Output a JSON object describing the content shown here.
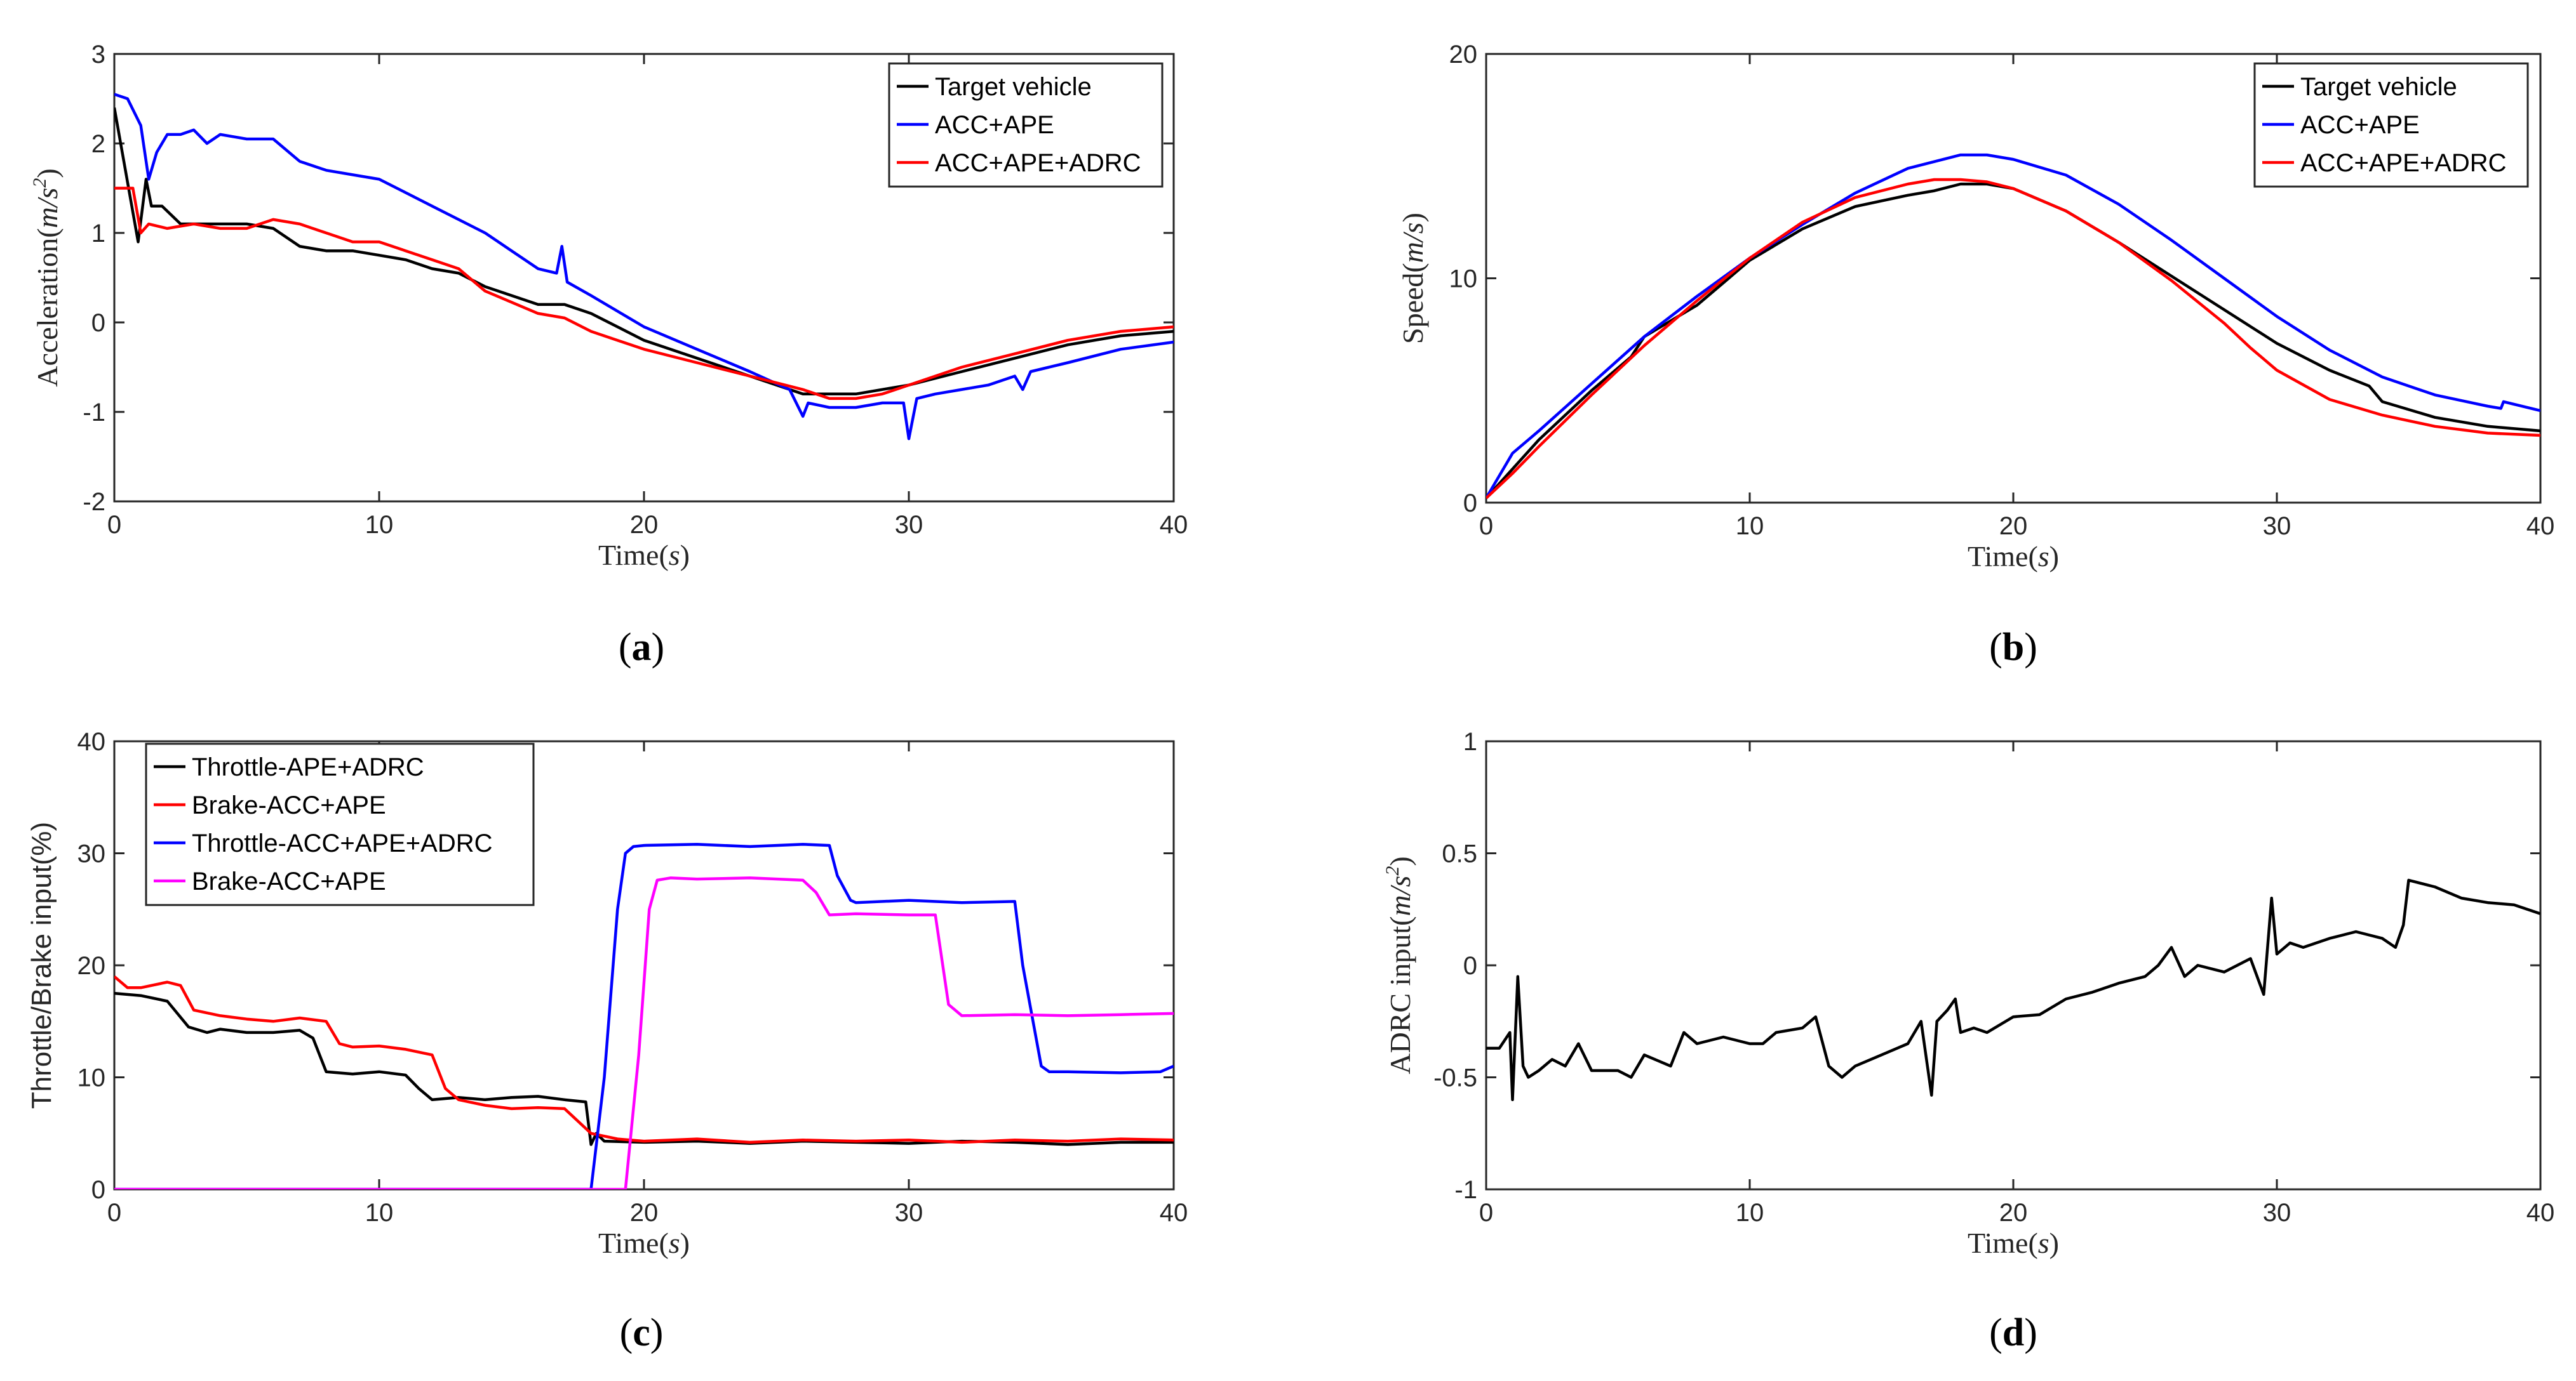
{
  "chart_data": [
    {
      "id": "a",
      "type": "line",
      "caption": "a",
      "xlabel_prefix": "Time",
      "xlabel_var": "s",
      "ylabel_prefix": "Acceleration",
      "ylabel_var": "m/s",
      "ylabel_sup": "2",
      "xlim": [
        0,
        40
      ],
      "ylim": [
        -2,
        3
      ],
      "xticks": [
        "0",
        "10",
        "20",
        "30",
        "40"
      ],
      "yticks": [
        "-2",
        "-1",
        "0",
        "1",
        "2",
        "3"
      ],
      "grid": false,
      "legend_position": "top-right",
      "series": [
        {
          "name": "Target vehicle",
          "color": "#000000",
          "x": [
            0,
            0.3,
            0.6,
            0.9,
            1.2,
            1.4,
            1.8,
            2.5,
            3.5,
            5,
            6,
            7,
            8,
            9,
            10,
            11,
            12,
            13,
            14,
            16,
            17,
            18,
            19,
            20,
            22,
            24,
            26,
            28,
            30,
            32,
            34,
            36,
            38,
            40
          ],
          "y": [
            2.4,
            1.9,
            1.4,
            0.9,
            1.6,
            1.3,
            1.3,
            1.1,
            1.1,
            1.1,
            1.05,
            0.85,
            0.8,
            0.8,
            0.75,
            0.7,
            0.6,
            0.55,
            0.4,
            0.2,
            0.2,
            0.1,
            -0.05,
            -0.2,
            -0.4,
            -0.6,
            -0.8,
            -0.8,
            -0.7,
            -0.55,
            -0.4,
            -0.25,
            -0.15,
            -0.1
          ]
        },
        {
          "name": "ACC+APE",
          "color": "#0000ff",
          "x": [
            0,
            0.5,
            1.0,
            1.3,
            1.6,
            2.0,
            2.5,
            3,
            3.5,
            4,
            5,
            6,
            7,
            8,
            9,
            10,
            11,
            12,
            13,
            14,
            15,
            16,
            16.7,
            16.9,
            17.1,
            18,
            20,
            22,
            24,
            25.5,
            26,
            26.2,
            27,
            28,
            29,
            29.8,
            30,
            30.3,
            31,
            33,
            34,
            34.3,
            34.6,
            36,
            38,
            40
          ],
          "y": [
            2.55,
            2.5,
            2.2,
            1.6,
            1.9,
            2.1,
            2.1,
            2.15,
            2.0,
            2.1,
            2.05,
            2.05,
            1.8,
            1.7,
            1.65,
            1.6,
            1.45,
            1.3,
            1.15,
            1.0,
            0.8,
            0.6,
            0.55,
            0.85,
            0.45,
            0.3,
            -0.05,
            -0.3,
            -0.55,
            -0.75,
            -1.05,
            -0.9,
            -0.95,
            -0.95,
            -0.9,
            -0.9,
            -1.3,
            -0.85,
            -0.8,
            -0.7,
            -0.6,
            -0.75,
            -0.55,
            -0.45,
            -0.3,
            -0.22
          ]
        },
        {
          "name": "ACC+APE+ADRC",
          "color": "#ff0000",
          "x": [
            0,
            0.7,
            1.0,
            1.3,
            2,
            3,
            4,
            5,
            6,
            7,
            8,
            9,
            10,
            11,
            12,
            13,
            14,
            16,
            17,
            18,
            19,
            20,
            22,
            24,
            26,
            27,
            28,
            29,
            30,
            32,
            34,
            36,
            38,
            40
          ],
          "y": [
            1.5,
            1.5,
            1.0,
            1.1,
            1.05,
            1.1,
            1.05,
            1.05,
            1.15,
            1.1,
            1.0,
            0.9,
            0.9,
            0.8,
            0.7,
            0.6,
            0.35,
            0.1,
            0.05,
            -0.1,
            -0.2,
            -0.3,
            -0.45,
            -0.6,
            -0.75,
            -0.85,
            -0.85,
            -0.8,
            -0.7,
            -0.5,
            -0.35,
            -0.2,
            -0.1,
            -0.05
          ]
        }
      ]
    },
    {
      "id": "b",
      "type": "line",
      "caption": "b",
      "xlabel_prefix": "Time",
      "xlabel_var": "s",
      "ylabel_prefix": "Speed",
      "ylabel_var": "m/s",
      "xlim": [
        0,
        40
      ],
      "ylim": [
        0,
        20
      ],
      "xticks": [
        "0",
        "10",
        "20",
        "30",
        "40"
      ],
      "yticks": [
        "0",
        "10",
        "20"
      ],
      "grid": false,
      "legend_position": "top-right",
      "series": [
        {
          "name": "Target vehicle",
          "color": "#000000",
          "x": [
            0,
            1,
            2,
            4,
            5.5,
            6,
            8,
            9,
            10,
            12,
            14,
            16,
            17,
            18,
            19,
            20,
            22,
            24,
            26,
            28,
            30,
            32,
            33.5,
            34,
            36,
            38,
            40
          ],
          "y": [
            0.2,
            1.5,
            2.8,
            5.0,
            6.5,
            7.4,
            8.8,
            9.8,
            10.8,
            12.2,
            13.2,
            13.7,
            13.9,
            14.2,
            14.2,
            14.0,
            13.0,
            11.6,
            10.1,
            8.6,
            7.1,
            5.9,
            5.2,
            4.5,
            3.8,
            3.4,
            3.2
          ]
        },
        {
          "name": "ACC+APE",
          "color": "#0000ff",
          "x": [
            0,
            0.3,
            0.8,
            1,
            2,
            4,
            6,
            8,
            10,
            12,
            14,
            16,
            18,
            19,
            20,
            22,
            24,
            26,
            28,
            30,
            32,
            34,
            36,
            38,
            38.5,
            38.6,
            40
          ],
          "y": [
            0.2,
            0.8,
            1.8,
            2.2,
            3.2,
            5.3,
            7.4,
            9.2,
            10.9,
            12.4,
            13.8,
            14.9,
            15.5,
            15.5,
            15.3,
            14.6,
            13.3,
            11.7,
            10.0,
            8.3,
            6.8,
            5.6,
            4.8,
            4.3,
            4.2,
            4.5,
            4.1
          ]
        },
        {
          "name": "ACC+APE+ADRC",
          "color": "#ff0000",
          "x": [
            0,
            1,
            2,
            4,
            6,
            8,
            10,
            12,
            14,
            16,
            17,
            18,
            19,
            20,
            22,
            24,
            26,
            28,
            29,
            30,
            32,
            34,
            36,
            38,
            40
          ],
          "y": [
            0.2,
            1.3,
            2.5,
            4.8,
            7.0,
            9.0,
            10.9,
            12.5,
            13.6,
            14.2,
            14.4,
            14.4,
            14.3,
            14.0,
            13.0,
            11.6,
            9.9,
            8.0,
            6.9,
            5.9,
            4.6,
            3.9,
            3.4,
            3.1,
            3.0
          ]
        }
      ]
    },
    {
      "id": "c",
      "type": "line",
      "caption": "c",
      "xlabel_prefix": "Time",
      "xlabel_var": "s",
      "ylabel_plain": "Throttle/Brake input(%)",
      "xlim": [
        0,
        40
      ],
      "ylim": [
        0,
        40
      ],
      "xticks": [
        "0",
        "10",
        "20",
        "30",
        "40"
      ],
      "yticks": [
        "0",
        "10",
        "20",
        "30",
        "40"
      ],
      "grid": false,
      "legend_position": "top-left",
      "series": [
        {
          "name": "Throttle-APE+ADRC",
          "color": "#000000",
          "x": [
            0,
            1,
            2,
            2.8,
            3.5,
            4,
            5,
            6,
            7,
            7.5,
            8,
            9,
            10,
            11,
            11.5,
            12,
            13,
            14,
            15,
            16,
            17,
            17.8,
            18.0,
            18.2,
            18.5,
            20,
            22,
            24,
            26,
            28,
            30,
            32,
            34,
            36,
            38,
            40
          ],
          "y": [
            17.5,
            17.3,
            16.8,
            14.5,
            14.0,
            14.3,
            14.0,
            14.0,
            14.2,
            13.5,
            10.5,
            10.3,
            10.5,
            10.2,
            9.0,
            8.0,
            8.2,
            8.0,
            8.2,
            8.3,
            8.0,
            7.8,
            4.0,
            5.0,
            4.3,
            4.2,
            4.3,
            4.1,
            4.3,
            4.2,
            4.1,
            4.3,
            4.2,
            4.0,
            4.2,
            4.2
          ]
        },
        {
          "name": "Brake-ACC+APE",
          "color": "#ff0000",
          "x": [
            0,
            0.5,
            1,
            2,
            2.5,
            3,
            4,
            5,
            6,
            7,
            8,
            8.5,
            9,
            10,
            11,
            12,
            12.5,
            13,
            14,
            15,
            16,
            17,
            18,
            19,
            20,
            22,
            24,
            26,
            28,
            30,
            32,
            34,
            36,
            38,
            40
          ],
          "y": [
            19.0,
            18.0,
            18.0,
            18.5,
            18.2,
            16.0,
            15.5,
            15.2,
            15.0,
            15.3,
            15.0,
            13.0,
            12.7,
            12.8,
            12.5,
            12.0,
            9.0,
            8.0,
            7.5,
            7.2,
            7.3,
            7.2,
            5.0,
            4.5,
            4.3,
            4.5,
            4.2,
            4.4,
            4.3,
            4.4,
            4.2,
            4.4,
            4.3,
            4.5,
            4.4
          ]
        },
        {
          "name": "Throttle-ACC+APE+ADRC",
          "color": "#0000ff",
          "x": [
            0,
            17.9,
            18.0,
            18.5,
            19.0,
            19.3,
            19.6,
            20,
            22,
            24,
            26,
            27,
            27.3,
            27.8,
            28,
            30,
            32,
            34,
            34.3,
            35,
            35.3,
            36,
            38,
            39.5,
            40
          ],
          "y": [
            0,
            0,
            0,
            10,
            25,
            30,
            30.6,
            30.7,
            30.8,
            30.6,
            30.8,
            30.7,
            28,
            25.8,
            25.6,
            25.8,
            25.6,
            25.7,
            20,
            11,
            10.5,
            10.5,
            10.4,
            10.5,
            11.0
          ]
        },
        {
          "name": "Brake-ACC+APE",
          "color": "#ff00ff",
          "x": [
            0,
            19.2,
            19.3,
            19.8,
            20.2,
            20.5,
            21,
            22,
            24,
            26,
            26.5,
            27,
            28,
            30,
            31,
            31.5,
            32,
            34,
            36,
            38,
            40
          ],
          "y": [
            0,
            0,
            0,
            12,
            25,
            27.6,
            27.8,
            27.7,
            27.8,
            27.6,
            26.5,
            24.5,
            24.6,
            24.5,
            24.5,
            16.5,
            15.5,
            15.6,
            15.5,
            15.6,
            15.7
          ]
        }
      ]
    },
    {
      "id": "d",
      "type": "line",
      "caption": "d",
      "xlabel_prefix": "Time",
      "xlabel_var": "s",
      "ylabel_prefix": "ADRC input",
      "ylabel_var": "m/s",
      "ylabel_sup": "2",
      "xlim": [
        0,
        40
      ],
      "ylim": [
        -1,
        1
      ],
      "xticks": [
        "0",
        "10",
        "20",
        "30",
        "40"
      ],
      "yticks": [
        "-1",
        "-0.5",
        "0",
        "0.5",
        "1"
      ],
      "grid": false,
      "legend_position": "none",
      "series": [
        {
          "name": "",
          "color": "#000000",
          "x": [
            0,
            0.5,
            0.9,
            1.0,
            1.2,
            1.4,
            1.6,
            2,
            2.5,
            3,
            3.5,
            4,
            5,
            5.5,
            6,
            7,
            7.5,
            8,
            9,
            10,
            10.5,
            11,
            12,
            12.5,
            13,
            13.5,
            14,
            15,
            16,
            16.5,
            16.9,
            17.1,
            17.5,
            17.8,
            18,
            18.5,
            19,
            20,
            21,
            22,
            23,
            24,
            25,
            25.5,
            26,
            26.5,
            27,
            28,
            29,
            29.5,
            29.8,
            30,
            30.5,
            31,
            32,
            33,
            34,
            34.5,
            34.8,
            35,
            36,
            37,
            38,
            39,
            40
          ],
          "y": [
            -0.37,
            -0.37,
            -0.3,
            -0.6,
            -0.05,
            -0.45,
            -0.5,
            -0.47,
            -0.42,
            -0.45,
            -0.35,
            -0.47,
            -0.47,
            -0.5,
            -0.4,
            -0.45,
            -0.3,
            -0.35,
            -0.32,
            -0.35,
            -0.35,
            -0.3,
            -0.28,
            -0.23,
            -0.45,
            -0.5,
            -0.45,
            -0.4,
            -0.35,
            -0.25,
            -0.58,
            -0.25,
            -0.2,
            -0.15,
            -0.3,
            -0.28,
            -0.3,
            -0.23,
            -0.22,
            -0.15,
            -0.12,
            -0.08,
            -0.05,
            0,
            0.08,
            -0.05,
            0,
            -0.03,
            0.03,
            -0.13,
            0.3,
            0.05,
            0.1,
            0.08,
            0.12,
            0.15,
            0.12,
            0.08,
            0.18,
            0.38,
            0.35,
            0.3,
            0.28,
            0.27,
            0.23
          ]
        }
      ]
    }
  ]
}
